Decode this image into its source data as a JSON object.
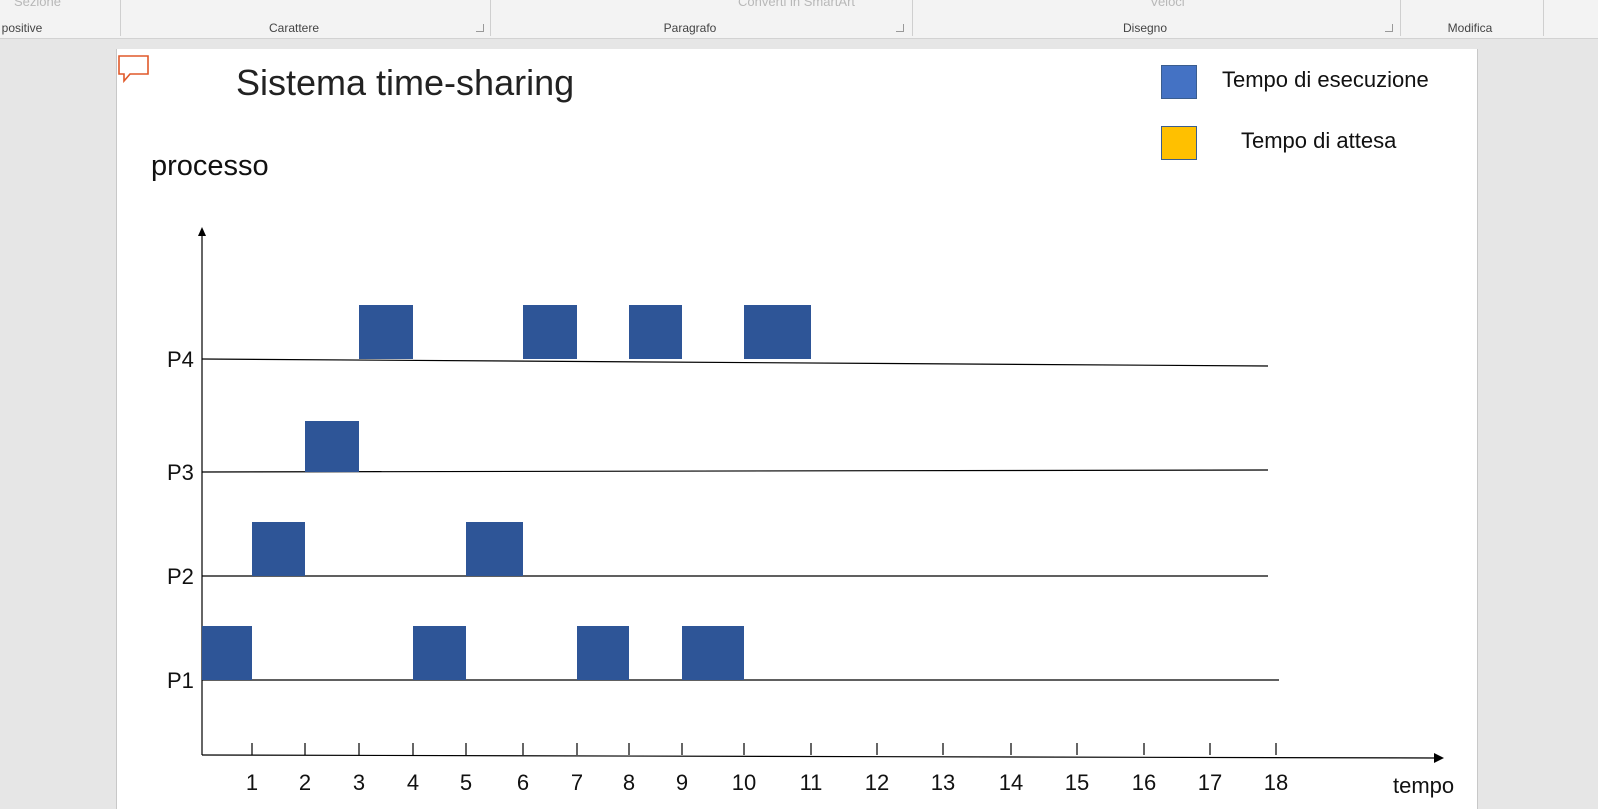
{
  "ribbon": {
    "groups": [
      "positive",
      "Carattere",
      "Paragrafo",
      "Disegno",
      "Modifica"
    ],
    "partial_controls": [
      "Sezione",
      "Converti in SmartArt",
      "Veloci"
    ]
  },
  "slide": {
    "title": "Sistema time-sharing",
    "legend": [
      {
        "label": "Tempo di esecuzione",
        "color": "#4472c4"
      },
      {
        "label": "Tempo di attesa",
        "color": "#ffc000"
      }
    ]
  },
  "chart_data": {
    "type": "timeline",
    "ylabel": "processo",
    "xlabel": "tempo",
    "x_ticks": [
      "1",
      "2",
      "3",
      "4",
      "5",
      "6",
      "7",
      "8",
      "9",
      "10",
      "11",
      "12",
      "13",
      "14",
      "15",
      "16",
      "17",
      "18"
    ],
    "processes": [
      "P1",
      "P2",
      "P3",
      "P4"
    ],
    "bar_color": "#2e5597",
    "series": [
      {
        "name": "P1",
        "intervals": [
          [
            0,
            1
          ],
          [
            4,
            5
          ],
          [
            7,
            8
          ],
          [
            9,
            10
          ]
        ]
      },
      {
        "name": "P2",
        "intervals": [
          [
            1,
            2
          ],
          [
            5,
            6
          ]
        ]
      },
      {
        "name": "P3",
        "intervals": [
          [
            2,
            3
          ]
        ]
      },
      {
        "name": "P4",
        "intervals": [
          [
            3,
            4
          ],
          [
            6,
            7
          ],
          [
            8,
            9
          ],
          [
            10,
            11
          ]
        ]
      }
    ]
  }
}
